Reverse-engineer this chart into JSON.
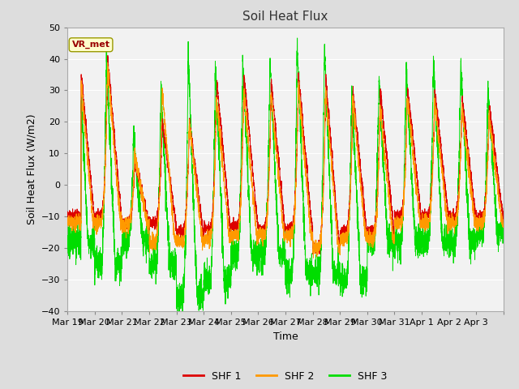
{
  "title": "Soil Heat Flux",
  "xlabel": "Time",
  "ylabel": "Soil Heat Flux (W/m2)",
  "ylim": [
    -40,
    50
  ],
  "yticks": [
    -40,
    -30,
    -20,
    -10,
    0,
    10,
    20,
    30,
    40,
    50
  ],
  "series_colors": [
    "#dd0000",
    "#ff9900",
    "#00dd00"
  ],
  "series_labels": [
    "SHF 1",
    "SHF 2",
    "SHF 3"
  ],
  "annotation_text": "VR_met",
  "annotation_color": "#990000",
  "annotation_bg": "#ffffcc",
  "n_days": 16,
  "pts_per_day": 288,
  "background_color": "#dddddd",
  "plot_bg_color": "#f2f2f2",
  "xtick_labels": [
    "Mar 19",
    "Mar 20",
    "Mar 21",
    "Mar 22",
    "Mar 23",
    "Mar 24",
    "Mar 25",
    "Mar 26",
    "Mar 27",
    "Mar 28",
    "Mar 29",
    "Mar 30",
    "Mar 31",
    "Apr 1",
    "Apr 2",
    "Apr 3"
  ],
  "grid_color": "#ffffff",
  "line_width": 0.7,
  "figsize": [
    6.4,
    4.8
  ],
  "dpi": 100
}
